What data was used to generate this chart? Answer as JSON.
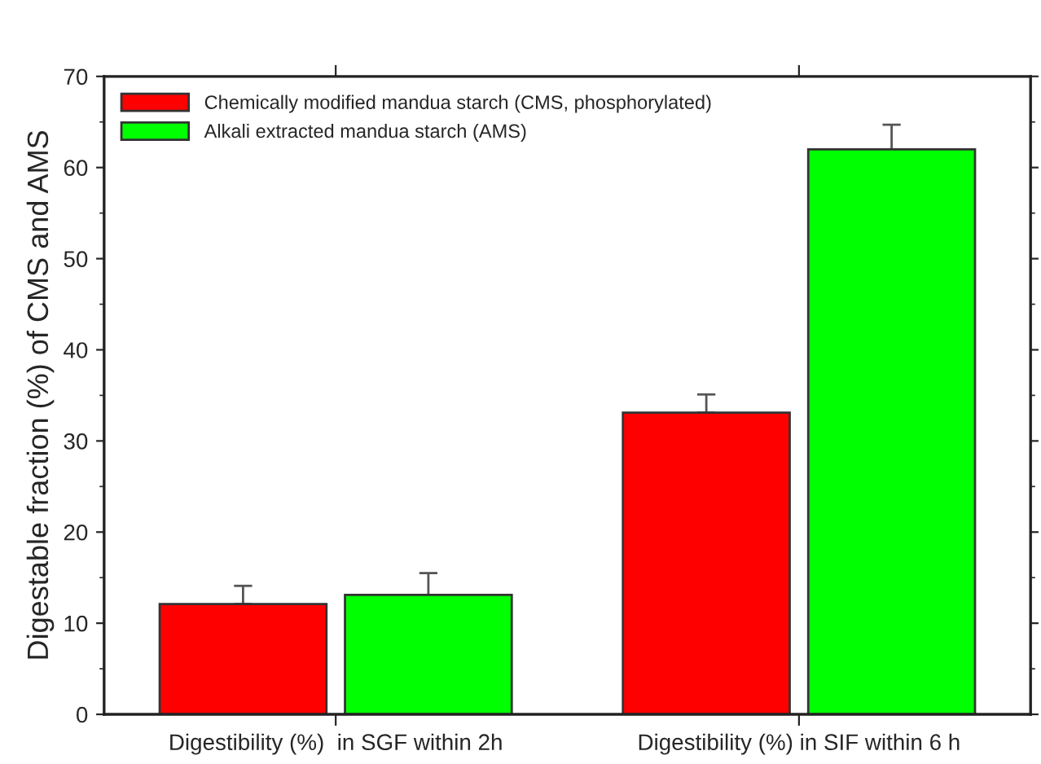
{
  "chart_data": {
    "type": "bar",
    "ylabel": "Digestable fraction (%) of CMS and AMS",
    "categories": [
      "Digestibility (%)  in SGF within 2h",
      "Digestibility (%) in SIF within 6 h"
    ],
    "series": [
      {
        "name": "Chemically modified mandua starch (CMS, phosphorylated)",
        "color": "#ff0000",
        "values": [
          12.1,
          33.1
        ],
        "errors": [
          2.0,
          2.0
        ]
      },
      {
        "name": "Alkali extracted mandua starch (AMS)",
        "color": "#00ff00",
        "values": [
          13.1,
          62.0
        ],
        "errors": [
          2.4,
          2.7
        ]
      }
    ],
    "ylim": [
      0,
      70
    ],
    "yticks": [
      0,
      10,
      20,
      30,
      40,
      50,
      60,
      70
    ],
    "grid": false,
    "legend": "top left"
  }
}
